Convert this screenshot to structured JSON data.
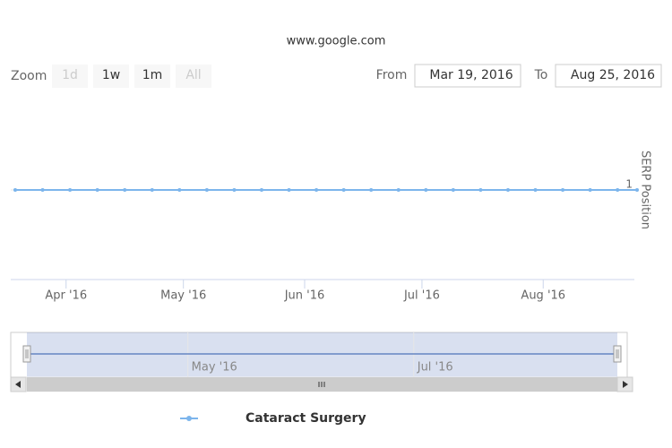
{
  "chart_data": {
    "type": "line",
    "title": "www.google.com",
    "y_axis_title": "SERP Position",
    "zoom": {
      "label": "Zoom",
      "buttons": [
        "1d",
        "1w",
        "1m",
        "All"
      ],
      "disabled": [
        "1d",
        "All"
      ]
    },
    "range": {
      "from_label": "From",
      "from": "Mar 19, 2016",
      "to_label": "To",
      "to": "Aug 25, 2016"
    },
    "x": [
      "2016-03-19",
      "2016-03-26",
      "2016-04-02",
      "2016-04-09",
      "2016-04-16",
      "2016-04-23",
      "2016-04-30",
      "2016-05-07",
      "2016-05-14",
      "2016-05-21",
      "2016-05-28",
      "2016-06-04",
      "2016-06-11",
      "2016-06-18",
      "2016-06-25",
      "2016-07-02",
      "2016-07-09",
      "2016-07-16",
      "2016-07-23",
      "2016-07-30",
      "2016-08-06",
      "2016-08-13",
      "2016-08-20",
      "2016-08-25"
    ],
    "series": [
      {
        "name": "Cataract Surgery",
        "color": "#7cb5ec",
        "values": [
          1,
          1,
          1,
          1,
          1,
          1,
          1,
          1,
          1,
          1,
          1,
          1,
          1,
          1,
          1,
          1,
          1,
          1,
          1,
          1,
          1,
          1,
          1,
          1
        ]
      }
    ],
    "xlim": [
      "2016-03-19",
      "2016-08-25"
    ],
    "xticks": [
      {
        "value": "2016-04-01",
        "label": "Apr '16"
      },
      {
        "value": "2016-05-01",
        "label": "May '16"
      },
      {
        "value": "2016-06-01",
        "label": "Jun '16"
      },
      {
        "value": "2016-07-01",
        "label": "Jul '16"
      },
      {
        "value": "2016-08-01",
        "label": "Aug '16"
      }
    ],
    "ylim": [
      0,
      2
    ],
    "yticks": [
      1
    ],
    "y_reversed": true,
    "navigator": {
      "xticks": [
        {
          "value": "2016-05-01",
          "label": "May '16"
        },
        {
          "value": "2016-07-01",
          "label": "Jul '16"
        }
      ]
    }
  }
}
